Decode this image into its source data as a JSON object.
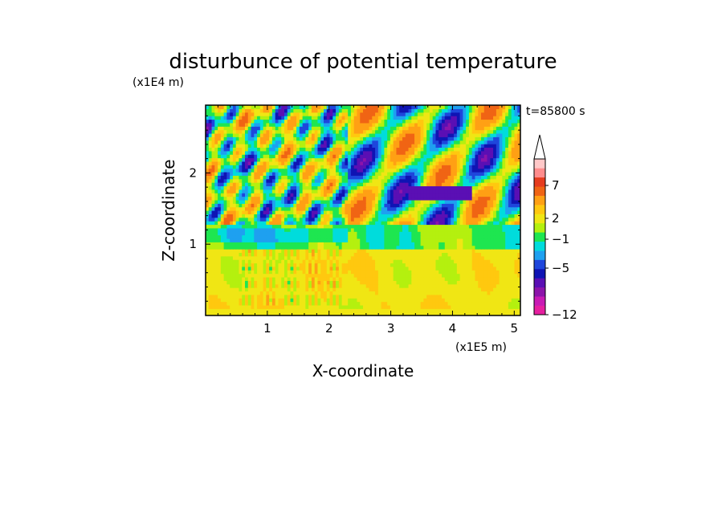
{
  "chart_data": {
    "type": "heatmap",
    "title": "disturbunce of potential temperature",
    "time_label": "t=85800 s",
    "xlabel": "X-coordinate",
    "ylabel": "Z-coordinate",
    "x_unit": "(x1E5 m)",
    "y_unit": "(x1E4 m)",
    "xlim": [
      0,
      5.1
    ],
    "ylim": [
      0,
      2.95
    ],
    "x_ticks": [
      1,
      2,
      3,
      4,
      5
    ],
    "y_ticks": [
      1,
      2
    ],
    "x_tick_labels": [
      "1",
      "2",
      "3",
      "4",
      "5"
    ],
    "y_tick_labels": [
      "1",
      "2"
    ],
    "colorbar": {
      "levels": [
        -12,
        -10,
        -8,
        -6,
        -5,
        -4,
        -3,
        -2,
        -1,
        0,
        1,
        2,
        3,
        5,
        7,
        9,
        11
      ],
      "colors": [
        "#e61fa0",
        "#c81ab4",
        "#8c14aa",
        "#5a0fb4",
        "#0f14b4",
        "#1e46dc",
        "#1ea0f0",
        "#00dcdc",
        "#1ee650",
        "#b4f00f",
        "#f0e614",
        "#ffc80f",
        "#ffa014",
        "#f06414",
        "#e63c1e",
        "#ff8c8c",
        "#ffc8c8"
      ],
      "tick_labels": [
        "7",
        "2",
        "−1",
        "−5",
        "−12"
      ],
      "extend": "max"
    }
  }
}
